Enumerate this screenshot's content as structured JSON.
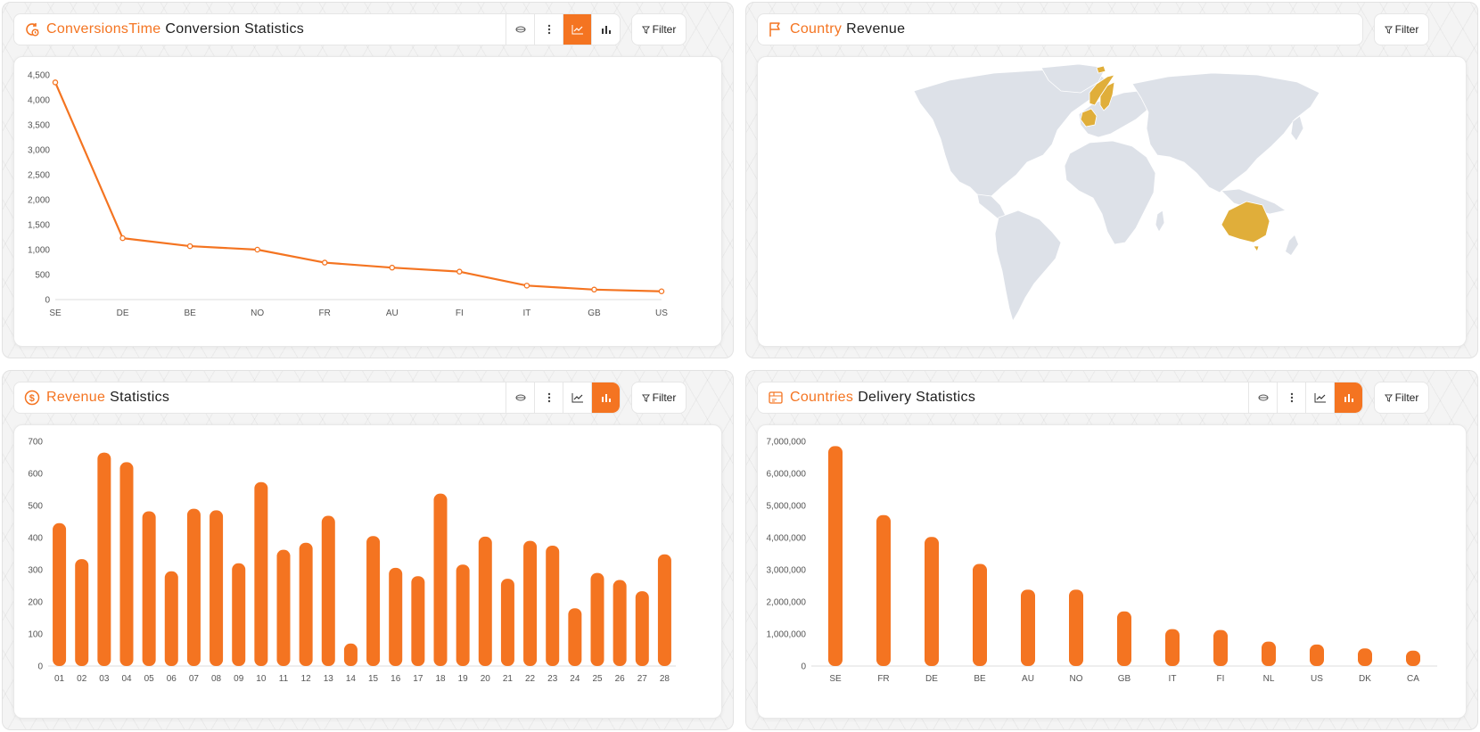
{
  "colors": {
    "accent": "#f47421",
    "map_highlight": "#e0ae3a",
    "map_base": "#dde1e8"
  },
  "panels": {
    "conversions": {
      "title_highlight": "ConversionsTime",
      "title_rest": "Conversion Statistics",
      "icon": "clock-cycle-icon",
      "filter_label": "Filter",
      "active_view": "line"
    },
    "country_revenue": {
      "title_highlight": "Country",
      "title_rest": "Revenue",
      "icon": "flag-icon",
      "filter_label": "Filter",
      "highlighted_countries": [
        "SE",
        "NO",
        "FR",
        "AU"
      ]
    },
    "revenue": {
      "title_highlight": "Revenue",
      "title_rest": "Statistics",
      "icon": "dollar-circle-icon",
      "filter_label": "Filter",
      "active_view": "bar"
    },
    "delivery": {
      "title_highlight": "Countries",
      "title_rest": "Delivery Statistics",
      "icon": "delivery-box-icon",
      "filter_label": "Filter",
      "active_view": "bar"
    }
  },
  "chart_data": [
    {
      "id": "conversions",
      "type": "line",
      "categories": [
        "SE",
        "DE",
        "BE",
        "NO",
        "FR",
        "AU",
        "FI",
        "IT",
        "GB",
        "US"
      ],
      "values": [
        4350,
        1230,
        1070,
        1000,
        740,
        640,
        560,
        280,
        200,
        165
      ],
      "ylim": [
        0,
        4500
      ],
      "yticks": [
        "0",
        "500",
        "1,000",
        "1,500",
        "2,000",
        "2,500",
        "3,000",
        "3,500",
        "4,000",
        "4,500"
      ],
      "ytick_values": [
        0,
        500,
        1000,
        1500,
        2000,
        2500,
        3000,
        3500,
        4000,
        4500
      ],
      "grid": false
    },
    {
      "id": "revenue",
      "type": "bar",
      "categories": [
        "01",
        "02",
        "03",
        "04",
        "05",
        "06",
        "07",
        "08",
        "09",
        "10",
        "11",
        "12",
        "13",
        "14",
        "15",
        "16",
        "17",
        "18",
        "19",
        "20",
        "21",
        "22",
        "23",
        "24",
        "25",
        "26",
        "27",
        "28"
      ],
      "values": [
        445,
        333,
        665,
        635,
        482,
        295,
        490,
        485,
        320,
        573,
        362,
        384,
        468,
        70,
        405,
        306,
        280,
        537,
        316,
        403,
        272,
        390,
        375,
        180,
        290,
        268,
        233,
        348
      ],
      "ylim": [
        0,
        700
      ],
      "yticks": [
        "0",
        "100",
        "200",
        "300",
        "400",
        "500",
        "600",
        "700"
      ],
      "ytick_values": [
        0,
        100,
        200,
        300,
        400,
        500,
        600,
        700
      ],
      "grid": false
    },
    {
      "id": "delivery",
      "type": "bar",
      "categories": [
        "SE",
        "FR",
        "DE",
        "BE",
        "AU",
        "NO",
        "GB",
        "IT",
        "FI",
        "NL",
        "US",
        "DK",
        "CA"
      ],
      "values": [
        6850000,
        4700000,
        4020000,
        3180000,
        2380000,
        2380000,
        1700000,
        1150000,
        1120000,
        760000,
        670000,
        550000,
        480000
      ],
      "ylim": [
        0,
        7000000
      ],
      "yticks": [
        "0",
        "1,000,000",
        "2,000,000",
        "3,000,000",
        "4,000,000",
        "5,000,000",
        "6,000,000",
        "7,000,000"
      ],
      "ytick_values": [
        0,
        1000000,
        2000000,
        3000000,
        4000000,
        5000000,
        6000000,
        7000000
      ],
      "grid": false
    }
  ]
}
